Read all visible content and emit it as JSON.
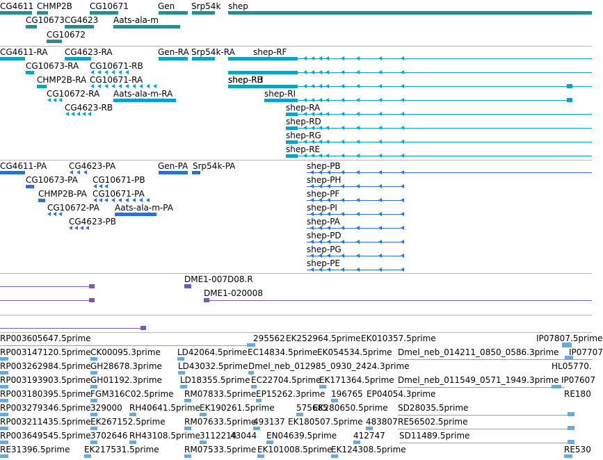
{
  "colors": {
    "gene": "#2e8b8b",
    "transcript": "#0aa3c8",
    "protein": "#2e6fd0",
    "cdna": "#7b5ab7",
    "est": "#6aa9e0",
    "separator": "#b8b8b8"
  },
  "tracks": {
    "genes": {
      "labels": [
        "CG4611",
        "CHMP2B",
        "CG10671",
        "Gen",
        "Srp54k",
        "shep",
        "CG10673",
        "CG4623",
        "Aats-ala-m",
        "CG10672"
      ]
    },
    "transcripts": {
      "labels": [
        "CG4611-RA",
        "CG4623-RA",
        "Gen-RA",
        "Srp54k-RA",
        "shep-RF",
        "CG10673-RA",
        "CG10671-RB",
        "shep-RB",
        "CHMP2B-RA",
        "CG10671-RA",
        "shep-RH",
        "CG10672-RA",
        "Aats-ala-m-RA",
        "shep-RI",
        "CG4623-RB",
        "shep-RA",
        "shep-RD",
        "shep-RG",
        "shep-RE"
      ]
    },
    "proteins": {
      "labels": [
        "CG4611-PA",
        "CG4623-PA",
        "Gen-PA",
        "Srp54k-PA",
        "shep-PB",
        "CG10673-PA",
        "CG10671-PB",
        "shep-PH",
        "CHMP2B-PA",
        "CG10671-PA",
        "shep-PF",
        "CG10672-PA",
        "Aats-ala-m-PA",
        "shep-PI",
        "CG4623-PB",
        "shep-PA",
        "shep-PD",
        "shep-PG",
        "shep-PE"
      ]
    },
    "cdna": {
      "labels": [
        "DME1-007D08.R",
        "DME1-020008"
      ]
    },
    "est": {
      "labels": [
        "RP003605647.5prime",
        "295562",
        "EK252964.5prime",
        "EK010357.5prime",
        "IP07807.5prime",
        "RP003147120.5prime",
        "CK00095.3prime",
        "LD42064.5prime",
        "EC14834.5prime",
        "EK054534.5prime",
        "Dmel_neb_014211_0850_0586.3prime",
        "IP07707",
        "RP003262984.5prime",
        "GH28678.3prime",
        "LD43032.5prime",
        "Dmel_neb_012985_0930_2424.3prime",
        "HL05770.",
        "RP003193903.5prime",
        "GH01192.3prime",
        "LD18355.5prime",
        "EC22704.5prime",
        "EK171364.5prime",
        "Dmel_neb_011549_0571_1949.3prime",
        "IP07607",
        "RP003180395.5prime",
        "FGM316C02.5prime",
        "RM07833.5prime",
        "EP15262.3prime",
        "196765",
        "EP04054.3prime",
        "RE180",
        "RP003279346.5prime",
        "329000",
        "RH40641.5prime",
        "EK190261.5prime",
        "575685",
        "EK280650.5prime",
        "SD28035.5prime",
        "RP003211435.5prime",
        "EK267152.5prime",
        "RM07633.5prime",
        "493137",
        "EK180507.5prime",
        "483807",
        "RE56502.5prime",
        "RP003649545.5prime",
        "3702646",
        "RH43108.5prime",
        "3112214",
        "43044",
        "EN04639.5prime",
        "412747",
        "SD11489.5prime",
        "RE31396.5prime",
        "EK217531.5prime",
        "RM07533.5prime",
        "EK101008.5prime",
        "EK124308.5prime",
        "RE530"
      ]
    }
  }
}
